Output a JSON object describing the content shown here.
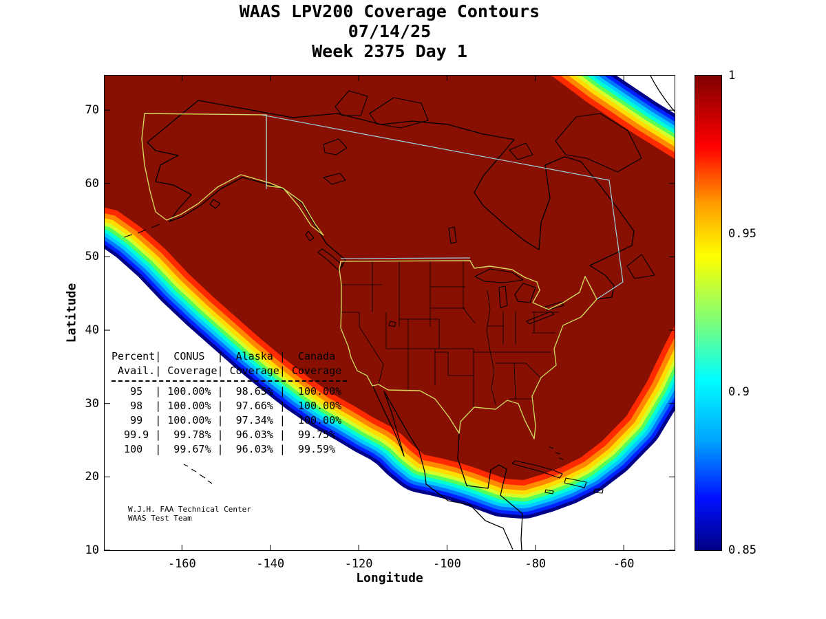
{
  "page": {
    "background": "#ffffff"
  },
  "chart_data": {
    "type": "filled_contour_map",
    "title": "WAAS LPV200 Coverage Contours",
    "date": "07/14/25",
    "week_day": "Week 2375 Day 1",
    "xlabel": "Longitude",
    "ylabel": "Latitude",
    "xlim": [
      -177.5,
      -48.5
    ],
    "ylim": [
      10,
      74.7
    ],
    "x_ticks": [
      -160,
      -140,
      -120,
      -100,
      -80,
      -60
    ],
    "y_ticks": [
      10,
      20,
      30,
      40,
      50,
      60,
      70
    ],
    "grid": false,
    "region": "North America",
    "colorbar": {
      "min": 0.85,
      "max": 1,
      "ticks": [
        1,
        0.95,
        0.9,
        0.85
      ],
      "colormap": "jet",
      "position": "right"
    },
    "contour": {
      "fill_color": "#871003",
      "band_colors": [
        "#000089",
        "#0021ff",
        "#0077ff",
        "#00ccff",
        "#00ffd5",
        "#59ff59",
        "#d4ff2a",
        "#ffdd00",
        "#ff8800",
        "#ff2a00"
      ]
    },
    "coverage_table": {
      "header_row1": [
        "Percent",
        "CONUS",
        "Alaska",
        "Canada"
      ],
      "header_row2": [
        "Avail.",
        "Coverage",
        "Coverage",
        "Coverage"
      ],
      "rows": [
        [
          "95",
          "100.00%",
          "98.65%",
          "100.00%"
        ],
        [
          "98",
          "100.00%",
          "97.66%",
          "100.00%"
        ],
        [
          "99",
          "100.00%",
          "97.34%",
          "100.00%"
        ],
        [
          "99.9",
          "99.78%",
          "96.03%",
          "99.75%"
        ],
        [
          "100",
          "99.67%",
          "96.03%",
          "99.59%"
        ]
      ]
    },
    "annotations": [
      "W.J.H. FAA Technical Center",
      "WAAS Test Team"
    ]
  },
  "map_colors": {
    "coastline": "#000000",
    "conus_alaska_outline": "#d6d65a",
    "canada_outline": "#9ecfdd",
    "plot_background": "#ffffff"
  }
}
